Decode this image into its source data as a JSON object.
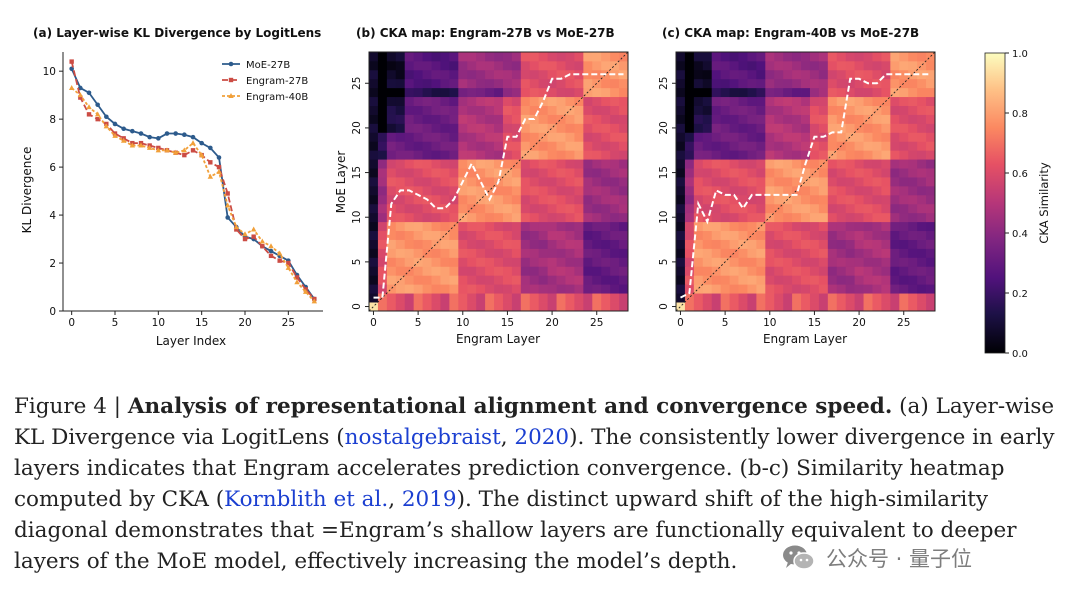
{
  "panels": [
    {
      "title": "(a) Layer-wise KL Divergence by LogitLens"
    },
    {
      "title": "(b) CKA map: Engram-27B vs MoE-27B"
    },
    {
      "title": "(c) CKA map: Engram-40B vs MoE-27B"
    }
  ],
  "colorbar": {
    "label": "CKA Similarity",
    "ticks": [
      "0.0",
      "0.2",
      "0.4",
      "0.6",
      "0.8",
      "1.0"
    ]
  },
  "caption": {
    "fig_label": "Figure 4 | ",
    "bold": "Analysis of representational alignment and convergence speed.",
    "t1": " (a) Layer-wise KL Divergence via LogitLens (",
    "link1": "nostalgebraist",
    "t2": ", ",
    "link2": "2020",
    "t3": "). The consistently lower divergence in early layers indicates that Engram accelerates prediction convergence. (b-c) Similarity heatmap computed by CKA (",
    "link3": "Kornblith et al.",
    "t4": ", ",
    "link4": "2019",
    "t5": "). The distinct upward shift of the high-similarity diagonal demonstrates that =Engram’s shallow layers are functionally equivalent to deeper layers of the MoE model, effectively increasing the model’s depth."
  },
  "watermark": {
    "text": "公众号 · 量子位"
  },
  "chart_data": [
    {
      "type": "line",
      "title": "(a) Layer-wise KL Divergence by LogitLens",
      "xlabel": "Layer Index",
      "ylabel": "KL Divergence",
      "xlim": [
        -1,
        29
      ],
      "ylim": [
        0,
        10.8
      ],
      "xticks": [
        0,
        5,
        10,
        15,
        20,
        25
      ],
      "yticks": [
        0,
        2,
        4,
        6,
        8,
        10
      ],
      "grid": false,
      "legend": "top-right",
      "x": [
        0,
        1,
        2,
        3,
        4,
        5,
        6,
        7,
        8,
        9,
        10,
        11,
        12,
        13,
        14,
        15,
        16,
        17,
        18,
        19,
        20,
        21,
        22,
        23,
        24,
        25,
        26,
        27,
        28
      ],
      "series": [
        {
          "name": "MoE-27B",
          "color": "#2d5b8c",
          "marker": "circle",
          "values": [
            10.1,
            9.3,
            9.1,
            8.6,
            8.1,
            7.8,
            7.6,
            7.5,
            7.4,
            7.25,
            7.2,
            7.4,
            7.4,
            7.35,
            7.25,
            7.0,
            6.8,
            6.4,
            3.9,
            3.5,
            3.1,
            3.0,
            2.7,
            2.5,
            2.3,
            2.1,
            1.5,
            1.0,
            0.5
          ]
        },
        {
          "name": "Engram-27B",
          "color": "#cc4c44",
          "marker": "square",
          "values": [
            10.4,
            8.9,
            8.2,
            8.0,
            7.8,
            7.4,
            7.2,
            7.0,
            7.0,
            6.9,
            6.8,
            6.7,
            6.6,
            6.5,
            6.7,
            6.5,
            6.2,
            6.0,
            4.9,
            3.4,
            3.0,
            3.1,
            2.7,
            2.3,
            2.1,
            2.0,
            1.4,
            0.9,
            0.5
          ]
        },
        {
          "name": "Engram-40B",
          "color": "#f1a03a",
          "marker": "triangle",
          "values": [
            9.3,
            9.0,
            8.5,
            8.2,
            7.7,
            7.3,
            7.1,
            6.9,
            6.9,
            6.8,
            6.7,
            6.7,
            6.6,
            6.7,
            7.0,
            6.5,
            5.6,
            5.8,
            4.4,
            3.5,
            3.2,
            3.4,
            2.9,
            2.7,
            2.4,
            1.8,
            1.2,
            0.8,
            0.4
          ]
        }
      ]
    },
    {
      "type": "heatmap",
      "title": "(b) CKA map: Engram-27B vs MoE-27B",
      "xlabel": "Engram Layer",
      "ylabel": "MoE Layer",
      "xlim": [
        0,
        29
      ],
      "ylim": [
        0,
        29
      ],
      "xticks": [
        0,
        5,
        10,
        15,
        20,
        25
      ],
      "yticks": [
        0,
        5,
        10,
        15,
        20,
        25
      ],
      "colorscale": "magma",
      "vmin": 0,
      "vmax": 1,
      "argmax_curve": {
        "x": [
          0,
          1,
          2,
          3,
          4,
          5,
          6,
          7,
          8,
          9,
          10,
          11,
          12,
          13,
          14,
          15,
          16,
          17,
          18,
          19,
          20,
          21,
          22,
          23,
          24,
          25,
          26,
          27,
          28
        ],
        "y": [
          1,
          1,
          11.5,
          13,
          13,
          12.5,
          12,
          11,
          11,
          12,
          14,
          16,
          14,
          12,
          14,
          19,
          19,
          21,
          21,
          23,
          25.5,
          25.5,
          26,
          26,
          26,
          26,
          26,
          26,
          26
        ]
      }
    },
    {
      "type": "heatmap",
      "title": "(c) CKA map: Engram-40B vs MoE-27B",
      "xlabel": "Engram Layer",
      "ylabel": "",
      "xlim": [
        0,
        29
      ],
      "ylim": [
        0,
        29
      ],
      "xticks": [
        0,
        5,
        10,
        15,
        20,
        25
      ],
      "yticks": [
        0,
        5,
        10,
        15,
        20,
        25
      ],
      "colorscale": "magma",
      "vmin": 0,
      "vmax": 1,
      "argmax_curve": {
        "x": [
          0,
          1,
          2,
          3,
          4,
          5,
          6,
          7,
          8,
          9,
          10,
          11,
          12,
          13,
          14,
          15,
          16,
          17,
          18,
          19,
          20,
          21,
          22,
          23,
          24,
          25,
          26,
          27,
          28
        ],
        "y": [
          1,
          1.5,
          11.5,
          9.5,
          13,
          12.5,
          12.5,
          11,
          12.5,
          12.5,
          12.5,
          12.5,
          12.5,
          12.5,
          16,
          19,
          19,
          19.5,
          19.5,
          25.5,
          25.5,
          25,
          25,
          26,
          26,
          26,
          26,
          26,
          26
        ]
      }
    }
  ]
}
